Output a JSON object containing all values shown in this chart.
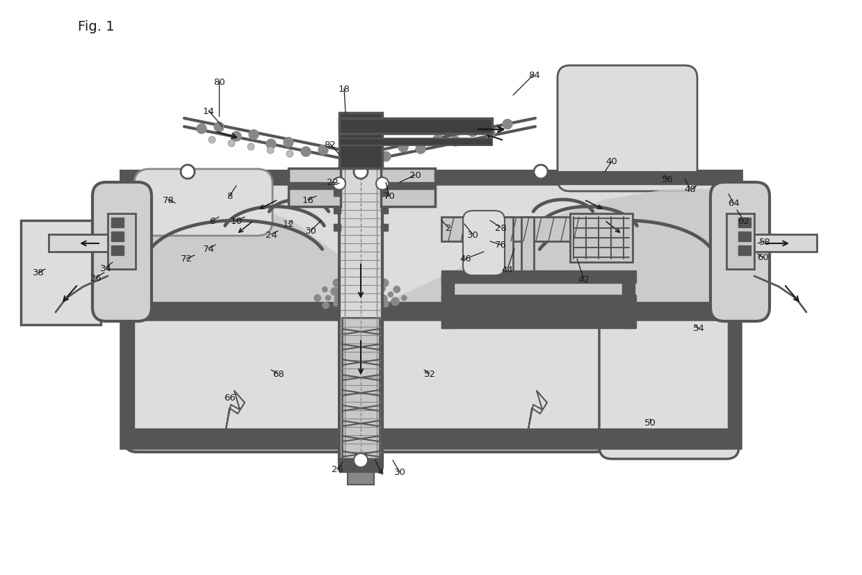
{
  "bg": "#ffffff",
  "blk": "#1a1a1a",
  "dgray": "#555555",
  "mgray": "#888888",
  "lgray": "#bbbbbb",
  "xgray": "#dddddd",
  "fill_bed": "#c8c8c8",
  "fill_dark": "#404040",
  "fig_label": "Fig. 1"
}
